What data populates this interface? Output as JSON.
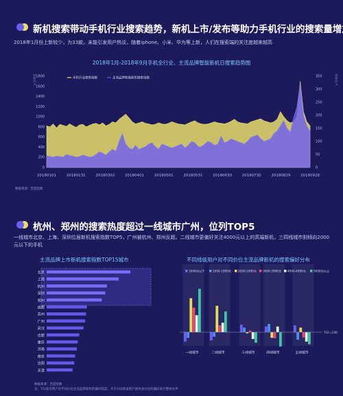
{
  "section1": {
    "title": "新机搜索带动手机行业搜索趋势，新机上市/发布等助力手机行业的搜索量增加",
    "desc": "2018年1月份上新较少，为33款，未能引发用户热议，随着iphone、小米、华为等上新，人们在搜索端的关注度越来越高",
    "source": "数据来源：百度指数"
  },
  "section2": {
    "title": "杭州、郑州的搜索热度超过一线城市广州，位列TOP5",
    "desc": "一线城市北京、上海、深圳位居新机搜索指数TOP5，广州被杭州、郑州反超。二线城市更偏好关注4000元以上的高端新机，三四线城市则倾向2000元以下的手机",
    "source": "数据来源：百度指数",
    "note": "注：TGI表示用户对不同价位主流品牌新机的偏好程度，大于100即该用户群对该价位的偏好高于整体水平"
  },
  "colors": {
    "background": "#1d1a5c",
    "yellow": "#e9de6a",
    "purple": "#6c5df2",
    "title_blue": "#7fc8ff"
  },
  "chart_data": [
    {
      "type": "area",
      "title": "2018年1月-2018年9月手机全行业、主流品牌智能新机日搜索趋势图",
      "legend": [
        "手机行业搜索指数",
        "主流品牌智能新机搜索指数"
      ],
      "left_unit": "x 10000",
      "right_unit": "x 10000",
      "x_ticks": [
        "20180101",
        "20180131",
        "20180302",
        "20180401",
        "20180501",
        "20180531",
        "20180630",
        "20180730",
        "20180829",
        "20180928"
      ],
      "y_left_ticks": [
        "1800",
        "1600",
        "1400",
        "1200",
        "1000",
        "800",
        "600",
        "400",
        "200",
        "0"
      ],
      "y_right_ticks": [
        "350",
        "300",
        "250",
        "200",
        "150",
        "100",
        "50",
        "0"
      ],
      "y_left_range": [
        0,
        1800
      ],
      "y_right_range": [
        0,
        350
      ],
      "series": [
        {
          "name": "手机行业搜索指数",
          "axis": "left",
          "values": [
            820,
            800,
            860,
            780,
            850,
            830,
            810,
            860,
            820,
            790,
            840,
            850,
            800,
            830,
            860,
            870,
            840,
            880,
            820,
            850,
            900,
            880,
            950,
            1000,
            1050,
            980,
            900,
            860,
            880,
            900,
            870,
            860,
            840,
            850,
            880,
            860,
            850,
            870,
            900,
            880,
            860,
            850,
            840,
            870,
            900,
            920,
            880,
            860,
            850,
            860,
            880,
            900,
            880,
            870,
            860,
            880,
            910,
            950,
            900,
            880,
            870,
            860,
            900,
            920,
            940,
            960,
            920,
            900,
            880,
            900,
            950,
            1100,
            1000,
            920,
            880,
            900,
            1000,
            1700,
            1100,
            900,
            820
          ]
        },
        {
          "name": "主流品牌智能新机搜索指数",
          "axis": "right",
          "values": [
            45,
            42,
            40,
            44,
            42,
            40,
            50,
            46,
            44,
            40,
            42,
            48,
            44,
            40,
            42,
            50,
            60,
            55,
            48,
            60,
            70,
            62,
            100,
            130,
            90,
            75,
            70,
            85,
            70,
            75,
            80,
            90,
            95,
            80,
            70,
            90,
            85,
            80,
            75,
            80,
            85,
            90,
            75,
            85,
            100,
            95,
            80,
            80,
            90,
            100,
            95,
            85,
            90,
            120,
            95,
            100,
            110,
            105,
            100,
            95,
            90,
            100,
            115,
            120,
            125,
            110,
            100,
            105,
            110,
            130,
            140,
            160,
            180,
            150,
            135,
            190,
            230,
            320,
            200,
            160,
            140
          ]
        }
      ]
    },
    {
      "type": "bar",
      "title": "主流品牌上市新机搜索指数TOP15城市",
      "categories": [
        "北京",
        "上海",
        "杭州",
        "深圳",
        "郑州",
        "成都",
        "苏州",
        "广州",
        "武汉",
        "合肥",
        "重庆",
        "济南",
        "南京",
        "沈阳",
        "天津"
      ],
      "values": [
        100,
        86,
        72,
        70,
        66,
        48,
        47,
        46,
        44,
        39,
        37,
        36,
        34,
        33,
        31
      ]
    },
    {
      "type": "bar",
      "title": "不同线级用户对不同价位主流品牌新机的搜索偏好分布",
      "categories": [
        "一线城市",
        "二线城市",
        "三线城市",
        "四线城市",
        "五线城市"
      ],
      "legend": [
        "1000元以下",
        "1000-1999元",
        "2000-2999元",
        "3000-3999元",
        "4000-4999元",
        "5000元以上"
      ],
      "axis_label": "TGI=100",
      "series": [
        {
          "name": "1000元以下",
          "color": "#6f5ff0",
          "values": [
            75,
            78,
            120,
            115,
            118
          ]
        },
        {
          "name": "1000-1999元",
          "color": "#4a8ff0",
          "values": [
            85,
            88,
            112,
            122,
            80
          ]
        },
        {
          "name": "2000-2999元",
          "color": "#e8de5a",
          "values": [
            190,
            170,
            97,
            85,
            112
          ]
        },
        {
          "name": "3000-3999元",
          "color": "#e84a6c",
          "values": [
            165,
            118,
            104,
            84,
            86
          ]
        },
        {
          "name": "4000-4999元",
          "color": "#f0f0f0",
          "values": [
            145,
            125,
            82,
            115,
            75
          ]
        },
        {
          "name": "5000元以上",
          "color": "#3ac8a4",
          "values": [
            215,
            155,
            72,
            62,
            68
          ]
        }
      ]
    }
  ]
}
